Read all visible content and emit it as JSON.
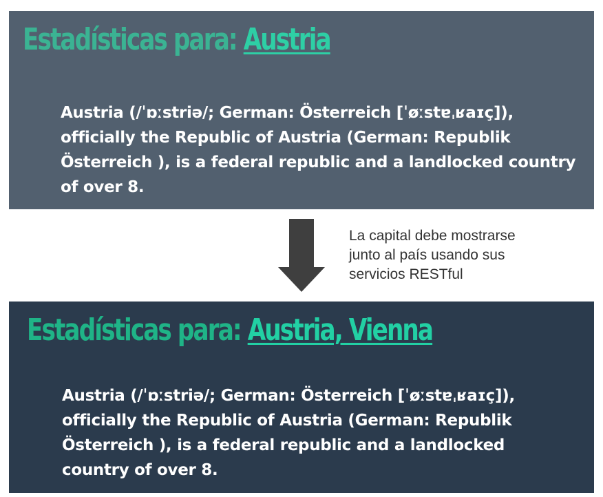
{
  "before_panel": {
    "heading_prefix": "Estadísticas para: ",
    "heading_link": "Austria",
    "description": "Austria (/ˈɒːstriə/; German: Österreich [ˈøːstɐˌʁaɪç]), officially the Republic of Austria (German: Republik Österreich ), is a federal republic and a landlocked country of over 8."
  },
  "annotation": {
    "lines": [
      "La capital debe mostrarse",
      "junto al país usando sus",
      "servicios RESTful"
    ]
  },
  "after_panel": {
    "heading_prefix": "Estadísticas para: ",
    "heading_link": "Austria, Vienna",
    "description": "Austria (/ˈɒːstriə/; German: Österreich [ˈøːstɐˌʁaɪç]), officially the Republic of Austria (German: Republik Österreich ), is a federal republic and a landlocked country of over 8."
  },
  "colors": {
    "before_panel_bg": "#52606f",
    "after_panel_bg": "#2b3b4d",
    "accent_green": "#2ecfa5",
    "arrow": "#3f3f3f"
  },
  "icons": {
    "arrow": "arrow-down-icon"
  }
}
